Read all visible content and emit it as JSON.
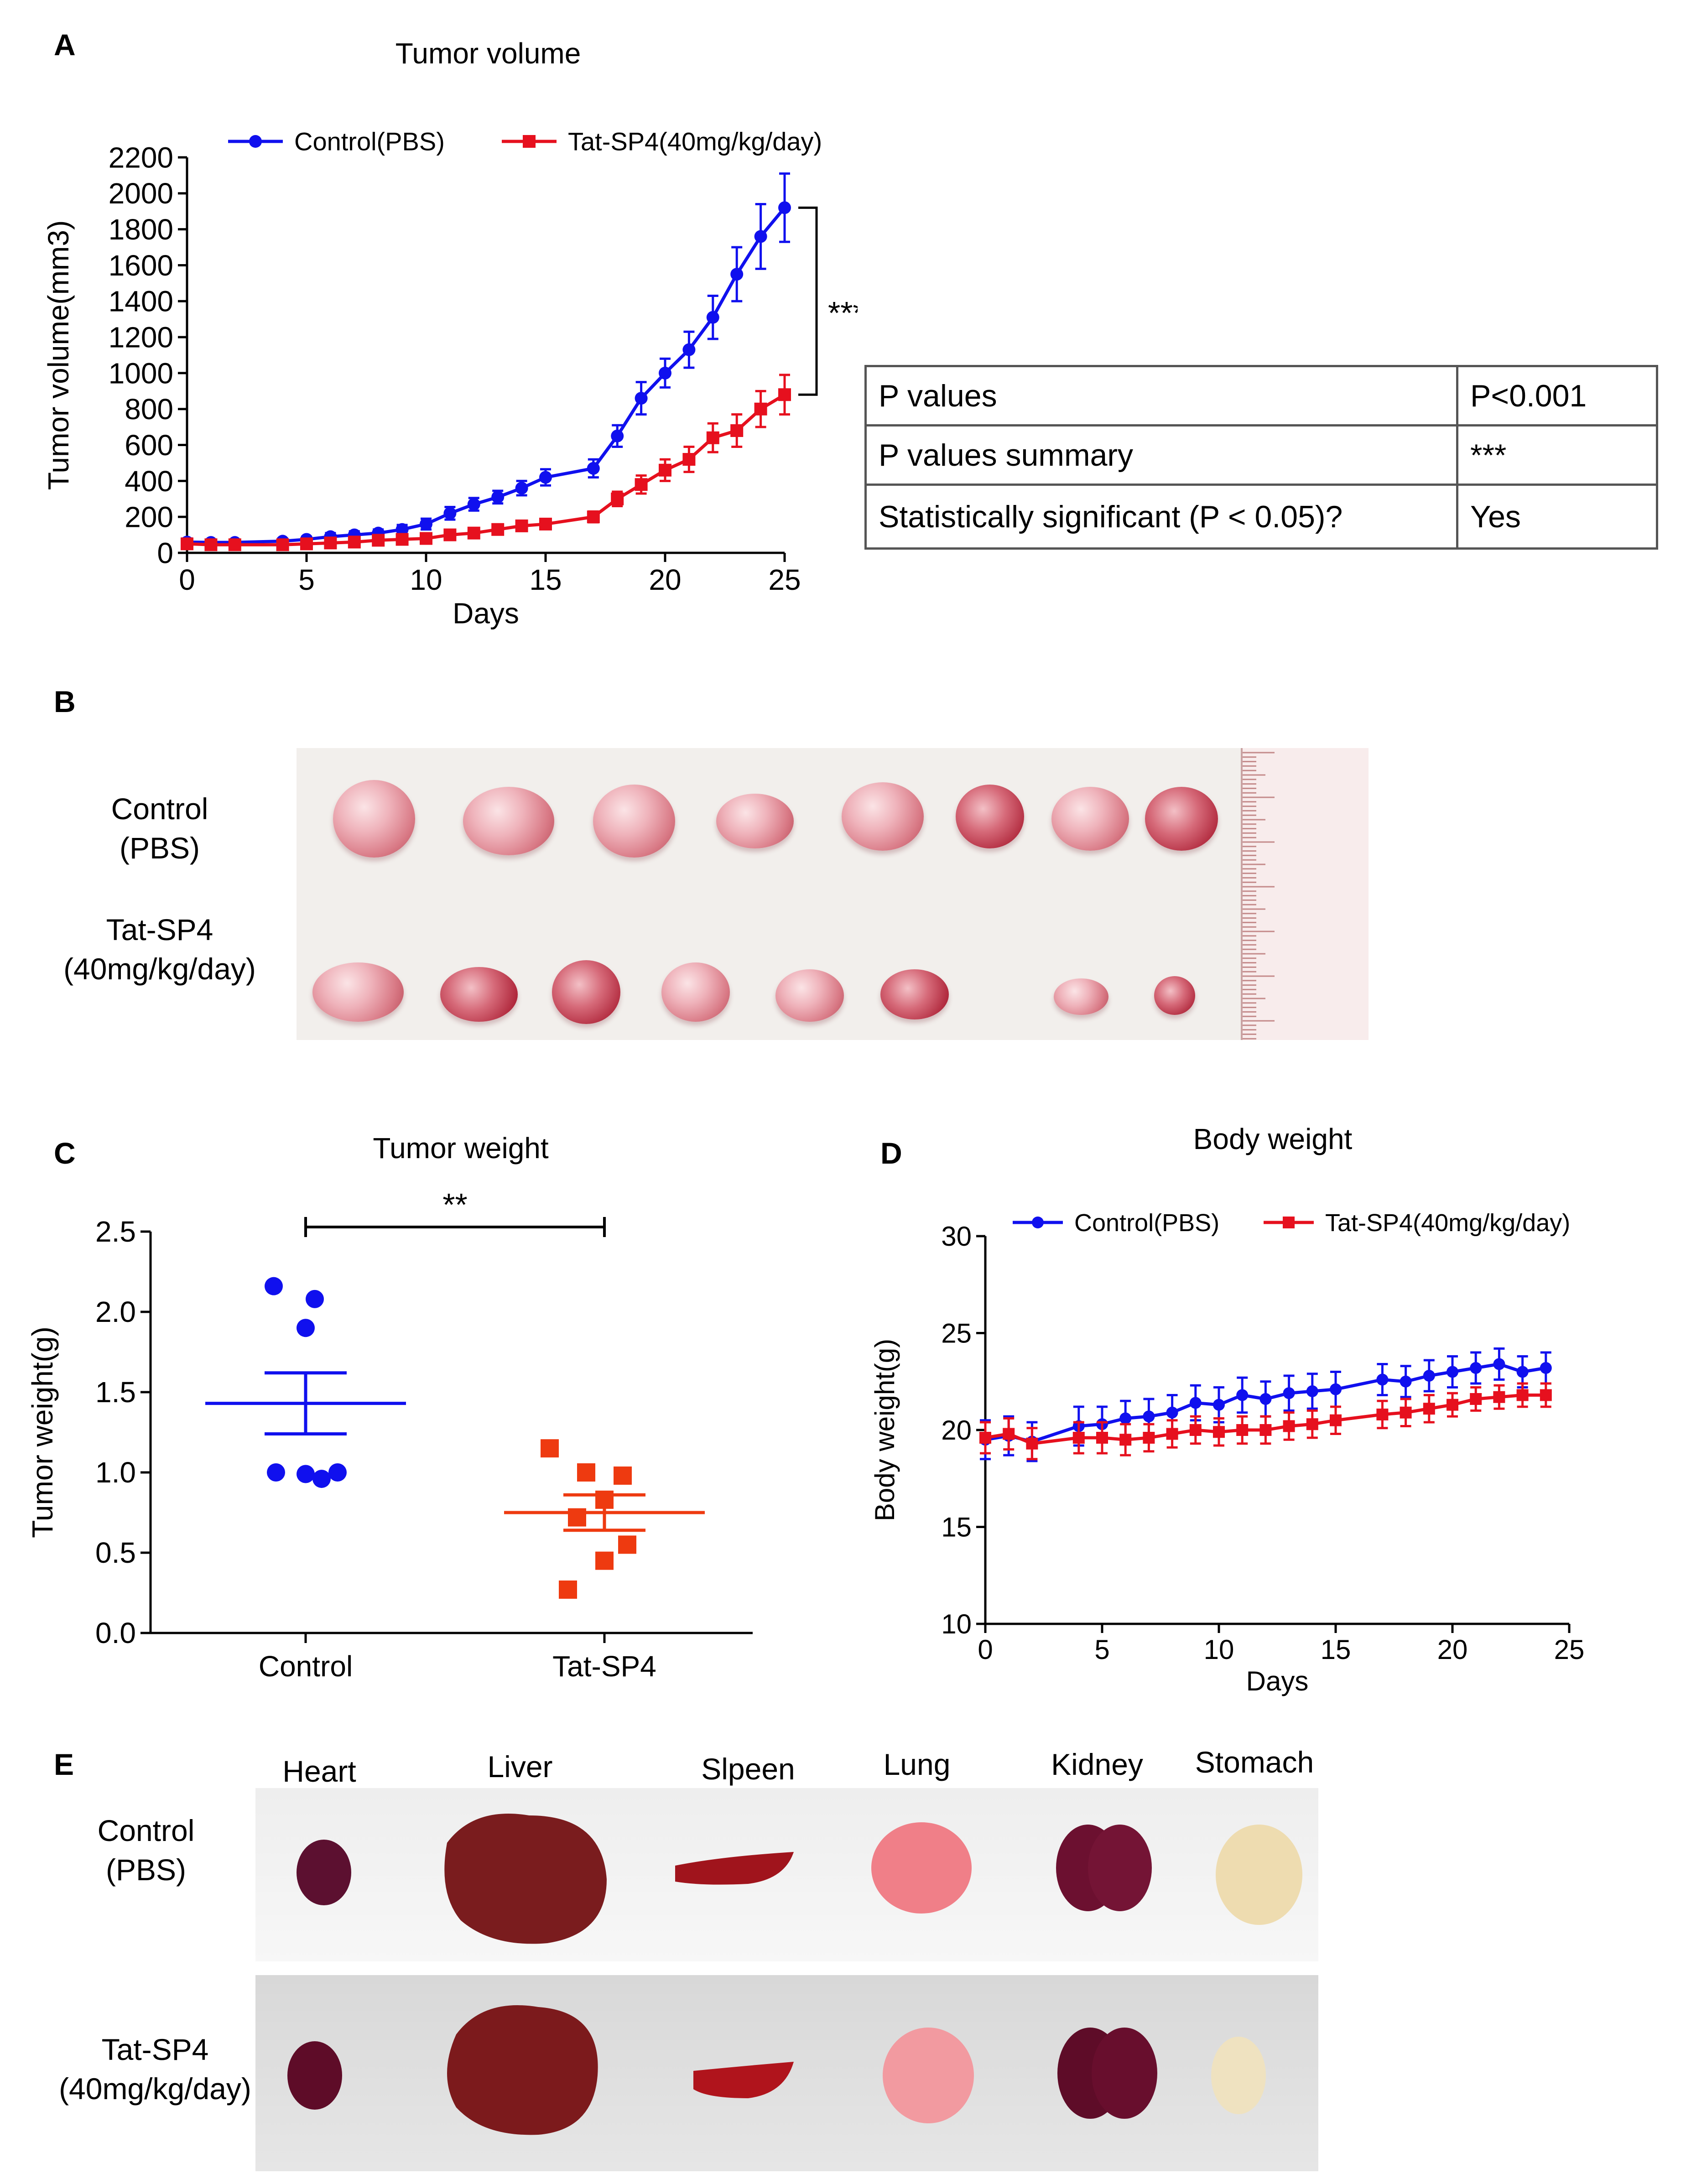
{
  "panelA": {
    "letter": "A",
    "chart_data": {
      "type": "line",
      "title": "Tumor volume",
      "xlabel": "Days",
      "ylabel": "Tumor volume(mm3)",
      "xlim": [
        0,
        25
      ],
      "ylim": [
        0,
        2200
      ],
      "xticks": [
        "0",
        "5",
        "10",
        "15",
        "20",
        "25"
      ],
      "yticks": [
        "0",
        "200",
        "400",
        "600",
        "800",
        "1000",
        "1200",
        "1400",
        "1600",
        "1800",
        "2000",
        "2200"
      ],
      "significance": "***",
      "series": [
        {
          "name": "Control(PBS)",
          "color": "#1010ee",
          "marker": "circle",
          "x": [
            0,
            1,
            2,
            4,
            5,
            6,
            7,
            8,
            9,
            10,
            11,
            12,
            13,
            14,
            15,
            17,
            18,
            19,
            20,
            21,
            22,
            23,
            24,
            25
          ],
          "y": [
            60,
            58,
            58,
            65,
            75,
            90,
            100,
            110,
            130,
            160,
            220,
            270,
            310,
            360,
            420,
            470,
            650,
            860,
            1000,
            1130,
            1310,
            1550,
            1760,
            1920
          ],
          "err": [
            20,
            15,
            15,
            15,
            15,
            20,
            20,
            20,
            25,
            30,
            35,
            35,
            35,
            40,
            45,
            50,
            60,
            90,
            80,
            100,
            120,
            150,
            180,
            190
          ]
        },
        {
          "name": "Tat-SP4(40mg/kg/day)",
          "color": "#e6101e",
          "marker": "square",
          "x": [
            0,
            1,
            2,
            4,
            5,
            6,
            7,
            8,
            9,
            10,
            11,
            12,
            13,
            14,
            15,
            17,
            18,
            19,
            20,
            21,
            22,
            23,
            24,
            25
          ],
          "y": [
            50,
            45,
            45,
            45,
            50,
            55,
            60,
            70,
            75,
            80,
            100,
            110,
            130,
            150,
            160,
            200,
            300,
            380,
            460,
            520,
            640,
            680,
            800,
            880
          ],
          "err": [
            15,
            10,
            10,
            10,
            10,
            10,
            10,
            15,
            15,
            15,
            20,
            20,
            20,
            20,
            25,
            30,
            40,
            50,
            60,
            70,
            80,
            90,
            100,
            110
          ]
        }
      ]
    },
    "table": {
      "rows": [
        {
          "label": "P values",
          "value": "P<0.001"
        },
        {
          "label": "P values summary",
          "value": "***"
        },
        {
          "label": "Statistically  significant (P < 0.05)?",
          "value": "Yes"
        }
      ]
    }
  },
  "panelB": {
    "letter": "B",
    "row1": [
      "Control",
      "(PBS)"
    ],
    "row2": [
      "Tat-SP4",
      "(40mg/kg/day)"
    ]
  },
  "panelC": {
    "letter": "C",
    "chart_data": {
      "type": "scatter",
      "title": "Tumor weight",
      "xlabel": "",
      "ylabel": "Tumor weight(g)",
      "ylim": [
        0,
        2.5
      ],
      "yticks": [
        "0.0",
        "0.5",
        "1.0",
        "1.5",
        "2.0",
        "2.5"
      ],
      "categories": [
        "Control",
        "Tat-SP4"
      ],
      "significance": "**",
      "series": [
        {
          "name": "Control",
          "color": "#1010ee",
          "marker": "circle",
          "values": [
            2.16,
            2.08,
            1.9,
            1.0,
            1.0,
            0.99,
            0.96
          ],
          "mean": 1.43,
          "sem_low": 1.24,
          "sem_high": 1.62
        },
        {
          "name": "Tat-SP4",
          "color": "#ee3a10",
          "marker": "square",
          "values": [
            1.15,
            1.0,
            0.98,
            0.83,
            0.72,
            0.55,
            0.45,
            0.27
          ],
          "mean": 0.75,
          "sem_low": 0.64,
          "sem_high": 0.86
        }
      ]
    }
  },
  "panelD": {
    "letter": "D",
    "chart_data": {
      "type": "line",
      "title": "Body weight",
      "xlabel": "Days",
      "ylabel": "Body weight(g)",
      "xlim": [
        0,
        25
      ],
      "ylim": [
        10,
        30
      ],
      "xticks": [
        "0",
        "5",
        "10",
        "15",
        "20",
        "25"
      ],
      "yticks": [
        "10",
        "15",
        "20",
        "25",
        "30"
      ],
      "series": [
        {
          "name": "Control(PBS)",
          "color": "#1010ee",
          "marker": "circle",
          "x": [
            0,
            1,
            2,
            4,
            5,
            6,
            7,
            8,
            9,
            10,
            11,
            12,
            13,
            14,
            15,
            17,
            18,
            19,
            20,
            21,
            22,
            23,
            24
          ],
          "y": [
            19.5,
            19.7,
            19.4,
            20.2,
            20.3,
            20.6,
            20.7,
            20.9,
            21.4,
            21.3,
            21.8,
            21.6,
            21.9,
            22.0,
            22.1,
            22.6,
            22.5,
            22.8,
            23.0,
            23.2,
            23.4,
            23.0,
            23.2
          ],
          "err": [
            1.0,
            1.0,
            1.0,
            1.0,
            0.9,
            0.9,
            0.9,
            0.9,
            0.9,
            0.9,
            0.9,
            0.9,
            0.9,
            0.9,
            0.9,
            0.8,
            0.8,
            0.8,
            0.8,
            0.8,
            0.8,
            0.8,
            0.8
          ]
        },
        {
          "name": "Tat-SP4(40mg/kg/day)",
          "color": "#e6101e",
          "marker": "square",
          "x": [
            0,
            1,
            2,
            4,
            5,
            6,
            7,
            8,
            9,
            10,
            11,
            12,
            13,
            14,
            15,
            17,
            18,
            19,
            20,
            21,
            22,
            23,
            24
          ],
          "y": [
            19.6,
            19.8,
            19.3,
            19.6,
            19.6,
            19.5,
            19.6,
            19.8,
            20.0,
            19.9,
            20.0,
            20.0,
            20.2,
            20.3,
            20.5,
            20.8,
            20.9,
            21.1,
            21.3,
            21.6,
            21.7,
            21.8,
            21.8
          ],
          "err": [
            0.8,
            0.8,
            0.8,
            0.8,
            0.8,
            0.8,
            0.7,
            0.7,
            0.7,
            0.7,
            0.7,
            0.7,
            0.7,
            0.7,
            0.7,
            0.7,
            0.7,
            0.7,
            0.6,
            0.6,
            0.6,
            0.6,
            0.6
          ]
        }
      ]
    }
  },
  "panelE": {
    "letter": "E",
    "organs": [
      "Heart",
      "Liver",
      "Slpeen",
      "Lung",
      "Kidney",
      "Stomach"
    ],
    "row1": [
      "Control",
      "(PBS)"
    ],
    "row2": [
      "Tat-SP4",
      "(40mg/kg/day)"
    ]
  }
}
